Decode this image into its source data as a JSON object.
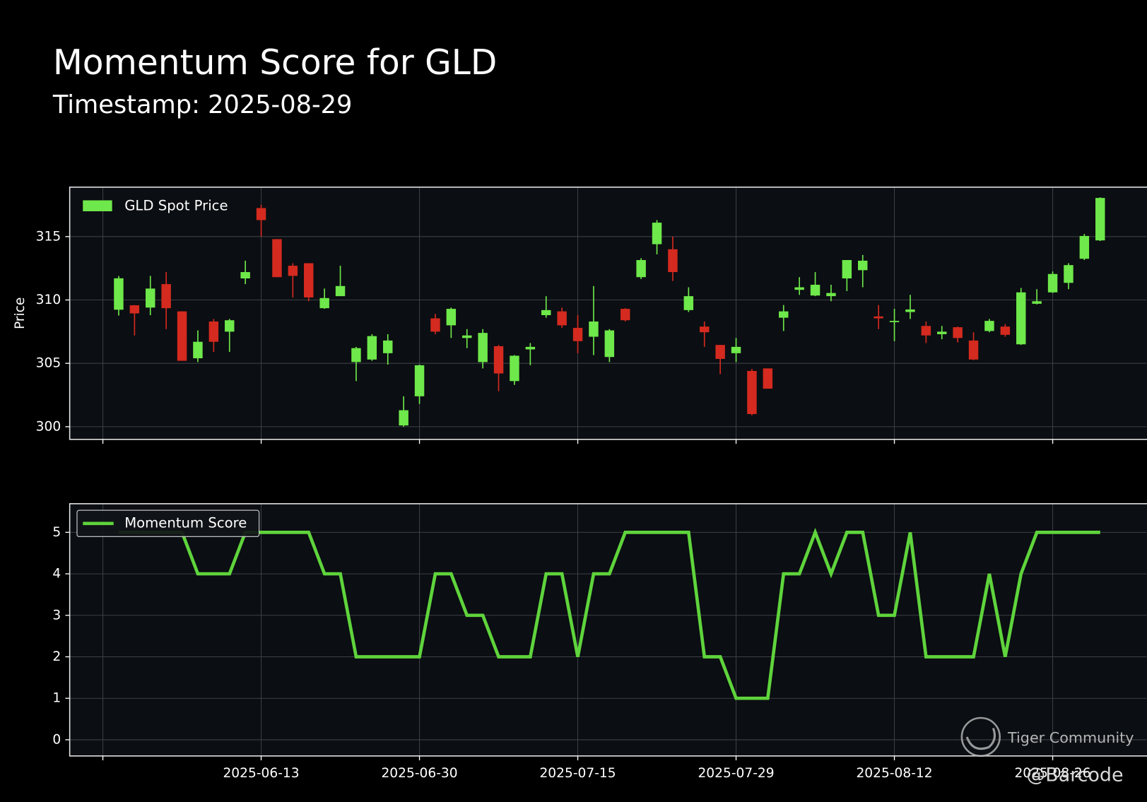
{
  "title": "Momentum Score for GLD",
  "subtitle": "Timestamp: 2025-08-29",
  "watermark": "Tiger Community",
  "credit": "@Barcode",
  "chart_data": [
    {
      "type": "candlestick",
      "y_label": "Price",
      "ylim": [
        299.0,
        318.9
      ],
      "yticks": [
        300,
        305,
        310,
        315
      ],
      "grid": true,
      "legend": "upper left",
      "series": [
        {
          "name": "GLD Spot Price",
          "color": "#6ee84a",
          "down_color": "#d42a1f",
          "open": [
            309.23,
            309.58,
            309.4,
            311.25,
            309.1,
            305.4,
            308.3,
            307.5,
            311.7,
            317.25,
            314.8,
            312.7,
            312.9,
            309.35,
            310.3,
            305.1,
            305.3,
            305.8,
            300.1,
            302.4,
            308.55,
            308.0,
            307.0,
            305.1,
            306.35,
            303.6,
            306.1,
            308.8,
            309.1,
            307.8,
            307.1,
            305.5,
            309.3,
            311.8,
            314.4,
            314.0,
            309.2,
            307.9,
            306.45,
            305.8,
            304.4,
            304.6,
            308.6,
            310.8,
            310.35,
            310.3,
            311.7,
            312.35,
            308.7,
            308.25,
            309.05,
            307.95,
            307.3,
            307.85,
            306.8,
            307.55,
            307.9,
            306.5,
            309.7,
            310.6,
            311.35,
            313.25,
            314.7
          ],
          "high": [
            311.89,
            309.6,
            311.9,
            312.2,
            309.1,
            307.6,
            308.5,
            308.5,
            313.1,
            317.5,
            314.8,
            312.9,
            312.9,
            310.9,
            312.7,
            306.3,
            307.3,
            307.3,
            302.4,
            304.9,
            308.9,
            309.4,
            307.7,
            307.7,
            306.45,
            305.65,
            306.6,
            310.3,
            309.4,
            308.8,
            311.1,
            307.7,
            309.35,
            313.3,
            316.3,
            315.0,
            311.0,
            308.3,
            306.45,
            307.0,
            304.55,
            304.6,
            309.6,
            311.8,
            312.2,
            311.2,
            313.15,
            313.55,
            309.6,
            309.3,
            310.4,
            308.3,
            307.95,
            307.9,
            307.45,
            308.5,
            308.1,
            310.95,
            310.85,
            312.25,
            312.9,
            315.2,
            318.1
          ],
          "low": [
            308.77,
            307.2,
            308.8,
            307.7,
            305.2,
            305.1,
            305.9,
            305.9,
            311.25,
            315.0,
            311.8,
            310.2,
            309.9,
            309.3,
            310.3,
            303.6,
            305.2,
            304.9,
            300.0,
            301.8,
            307.3,
            307.0,
            306.2,
            304.6,
            302.8,
            303.3,
            304.85,
            308.6,
            307.8,
            305.8,
            305.65,
            305.1,
            308.3,
            311.65,
            313.6,
            311.5,
            309.05,
            306.3,
            304.15,
            305.1,
            300.9,
            303.0,
            307.55,
            310.4,
            310.3,
            309.9,
            310.7,
            311.0,
            307.7,
            306.75,
            308.5,
            306.6,
            306.9,
            306.65,
            305.25,
            307.45,
            307.1,
            306.45,
            309.65,
            310.55,
            310.85,
            313.15,
            314.65
          ],
          "close": [
            311.71,
            308.94,
            310.9,
            309.35,
            305.2,
            306.7,
            306.7,
            308.4,
            312.2,
            316.3,
            311.8,
            311.9,
            310.2,
            310.15,
            311.1,
            306.2,
            307.15,
            306.8,
            301.3,
            304.85,
            307.5,
            309.3,
            307.2,
            307.4,
            304.2,
            305.6,
            306.3,
            309.2,
            308.0,
            306.75,
            308.3,
            307.6,
            308.4,
            313.15,
            316.1,
            312.2,
            310.3,
            307.45,
            305.35,
            306.3,
            301.0,
            303.0,
            309.1,
            311.0,
            311.2,
            310.55,
            313.15,
            313.1,
            308.55,
            308.35,
            309.25,
            307.2,
            307.5,
            307.0,
            305.3,
            308.35,
            307.25,
            310.6,
            309.9,
            312.05,
            312.75,
            315.05,
            318.05
          ]
        }
      ]
    },
    {
      "type": "line",
      "ylim": [
        -0.39,
        5.69
      ],
      "yticks": [
        0,
        1,
        2,
        3,
        4,
        5
      ],
      "grid": true,
      "legend": "upper left",
      "categories": [
        null,
        null,
        null,
        null,
        null,
        null,
        null,
        null,
        null,
        "2025-06-13",
        null,
        null,
        null,
        null,
        null,
        null,
        null,
        null,
        null,
        "2025-06-30",
        null,
        null,
        null,
        null,
        null,
        null,
        null,
        null,
        null,
        "2025-07-15",
        null,
        null,
        null,
        null,
        null,
        null,
        null,
        null,
        null,
        "2025-07-29",
        null,
        null,
        null,
        null,
        null,
        null,
        null,
        null,
        null,
        "2025-08-12",
        null,
        null,
        null,
        null,
        null,
        null,
        null,
        null,
        null,
        "2025-08-26",
        null,
        null,
        null
      ],
      "series": [
        {
          "name": "Momentum Score",
          "color": "#5fd43c",
          "values": [
            5,
            5,
            5,
            5,
            5,
            4,
            4,
            4,
            5,
            5,
            5,
            5,
            5,
            4,
            4,
            2,
            2,
            2,
            2,
            2,
            4,
            4,
            3,
            3,
            2,
            2,
            2,
            4,
            4,
            2,
            4,
            4,
            5,
            5,
            5,
            5,
            5,
            2,
            2,
            1,
            1,
            1,
            4,
            4,
            5,
            4,
            5,
            5,
            3,
            3,
            5,
            2,
            2,
            2,
            2,
            4,
            2,
            4,
            5,
            5,
            5,
            5,
            5
          ]
        }
      ]
    }
  ]
}
